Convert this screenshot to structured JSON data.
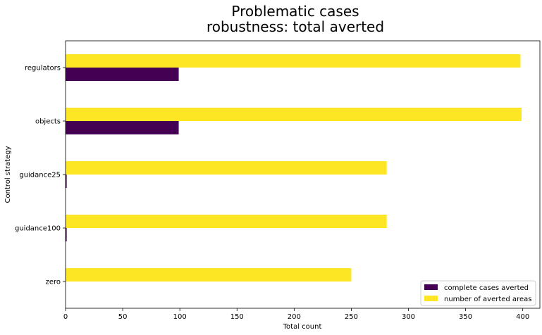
{
  "chart_data": {
    "type": "bar",
    "orientation": "horizontal",
    "title_lines": [
      "Problematic cases",
      "robustness: total averted"
    ],
    "xlabel": "Total count",
    "ylabel": "Control strategy",
    "categories": [
      "zero",
      "guidance100",
      "guidance25",
      "objects",
      "regulators"
    ],
    "series": [
      {
        "name": "complete cases averted",
        "color": "#440154",
        "values": [
          0,
          1,
          1,
          99,
          99
        ]
      },
      {
        "name": "number of averted areas",
        "color": "#fde725",
        "values": [
          250,
          281,
          281,
          399,
          398
        ]
      }
    ],
    "xlim": [
      0,
      415
    ],
    "xticks": [
      0,
      50,
      100,
      150,
      200,
      250,
      300,
      350,
      400
    ],
    "grid": false,
    "legend_position": "lower right"
  }
}
